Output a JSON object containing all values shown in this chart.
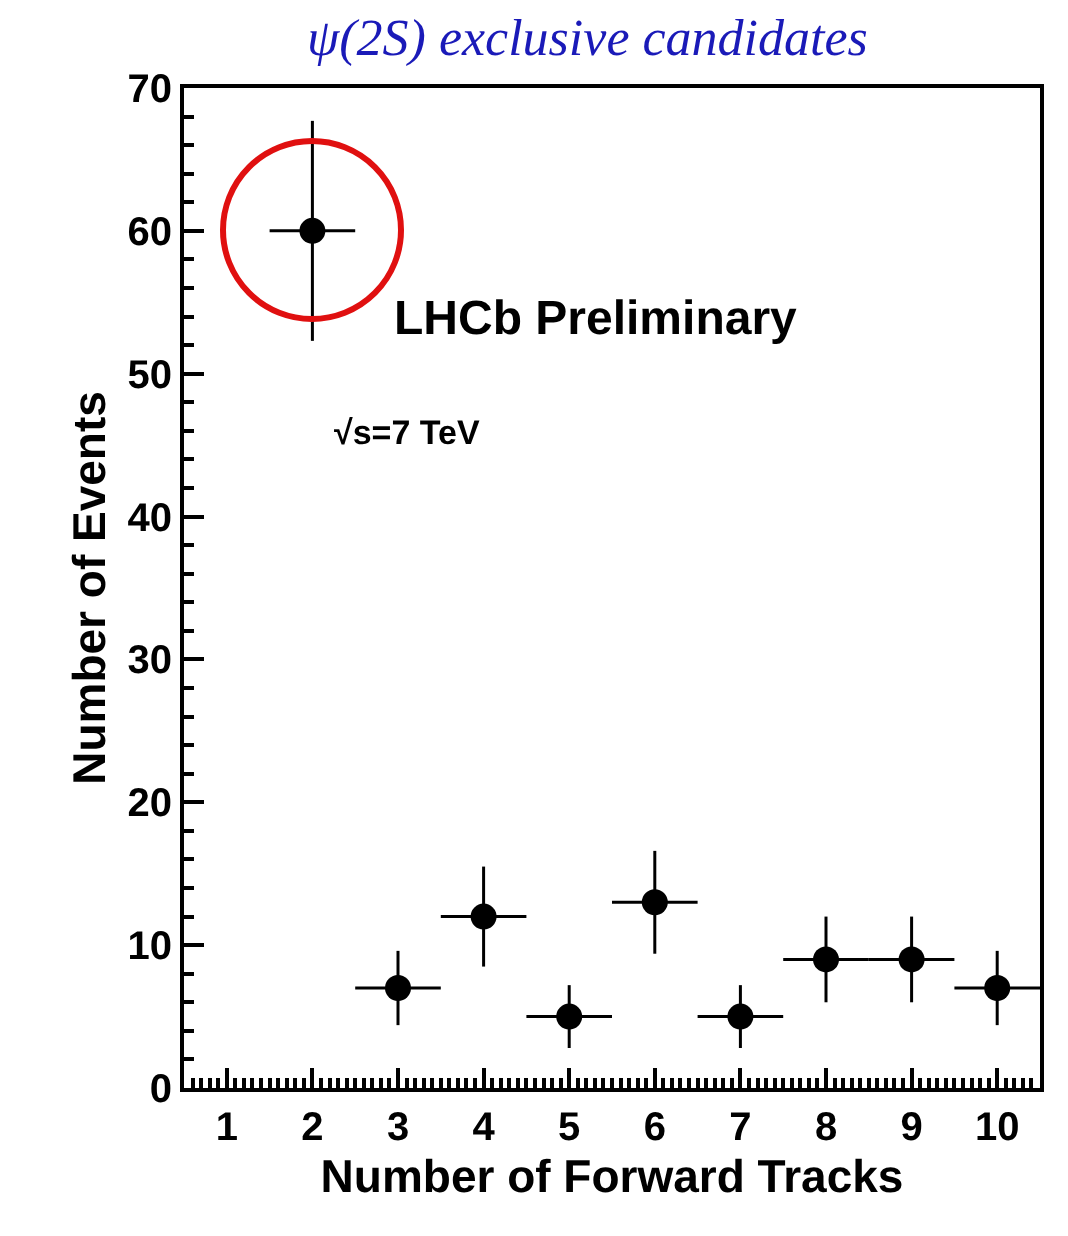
{
  "chart_data": {
    "type": "scatter",
    "title": "ψ(2S) exclusive candidates",
    "xlabel": "Number of Forward Tracks",
    "ylabel": "Number of Events",
    "x": [
      2,
      3,
      4,
      5,
      6,
      7,
      8,
      9,
      10
    ],
    "values": [
      60,
      7,
      12,
      5,
      13,
      5,
      9,
      9,
      7
    ],
    "errors": [
      7.7,
      2.6,
      3.5,
      2.2,
      3.6,
      2.2,
      3,
      3,
      2.6
    ],
    "xerrors": [
      0.5,
      0.5,
      0.5,
      0.5,
      0.5,
      0.5,
      0.5,
      0.5,
      0.5
    ],
    "color": "#000000",
    "marker": "circle",
    "xlim": [
      0.5,
      10.5
    ],
    "xticks": [
      1,
      2,
      3,
      4,
      5,
      6,
      7,
      8,
      9,
      10
    ],
    "ylim": [
      0,
      70
    ],
    "yticks": [
      0,
      10,
      20,
      30,
      40,
      50,
      60,
      70
    ],
    "annotations": [
      "LHCb Preliminary",
      "√s=7 TeV"
    ],
    "grid": false
  }
}
